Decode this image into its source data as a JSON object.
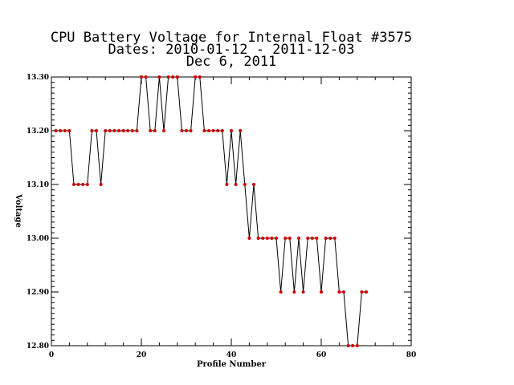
{
  "chart_data": {
    "type": "line",
    "title": [
      "CPU Battery Voltage for Internal Float #3575",
      "Dates:  2010-01-12 -  2011-12-03",
      "Dec  6, 2011"
    ],
    "xlabel": "Profile Number",
    "ylabel": "Voltage",
    "xlim": [
      0,
      80
    ],
    "ylim": [
      12.8,
      13.3
    ],
    "xticks": [
      0,
      20,
      40,
      60,
      80
    ],
    "xtick_labels": [
      "0",
      "20",
      "40",
      "60",
      "80"
    ],
    "yticks": [
      12.8,
      12.9,
      13.0,
      13.1,
      13.2,
      13.3
    ],
    "ytick_labels": [
      "12.80",
      "12.90",
      "13.00",
      "13.10",
      "13.20",
      "13.30"
    ],
    "grid": false,
    "line_color": "#000000",
    "marker_color": "#cc0000",
    "series": [
      {
        "x": [
          1,
          2,
          3,
          4,
          5,
          6,
          7,
          8,
          9,
          10,
          11,
          12,
          13,
          14,
          15,
          16,
          17,
          18,
          19,
          20,
          21,
          22,
          23,
          24,
          25,
          26,
          27,
          28,
          29,
          30,
          31,
          32,
          33,
          34,
          35,
          36,
          37,
          38,
          39,
          40,
          41,
          42,
          43,
          44,
          45,
          46,
          47,
          48,
          49,
          50,
          51,
          52,
          53,
          54,
          55,
          56,
          57,
          58,
          59,
          60,
          61,
          62,
          63,
          64,
          65,
          66,
          67,
          68,
          69,
          70
        ],
        "values": [
          13.2,
          13.2,
          13.2,
          13.2,
          13.1,
          13.1,
          13.1,
          13.1,
          13.2,
          13.2,
          13.1,
          13.2,
          13.2,
          13.2,
          13.2,
          13.2,
          13.2,
          13.2,
          13.2,
          13.3,
          13.3,
          13.2,
          13.2,
          13.3,
          13.2,
          13.3,
          13.3,
          13.3,
          13.2,
          13.2,
          13.2,
          13.3,
          13.3,
          13.2,
          13.2,
          13.2,
          13.2,
          13.2,
          13.1,
          13.2,
          13.1,
          13.2,
          13.1,
          13.0,
          13.1,
          13.0,
          13.0,
          13.0,
          13.0,
          13.0,
          12.9,
          13.0,
          13.0,
          12.9,
          13.0,
          12.9,
          13.0,
          13.0,
          13.0,
          12.9,
          13.0,
          13.0,
          13.0,
          12.9,
          12.9,
          12.8,
          12.8,
          12.8,
          12.9,
          12.9
        ]
      }
    ]
  }
}
